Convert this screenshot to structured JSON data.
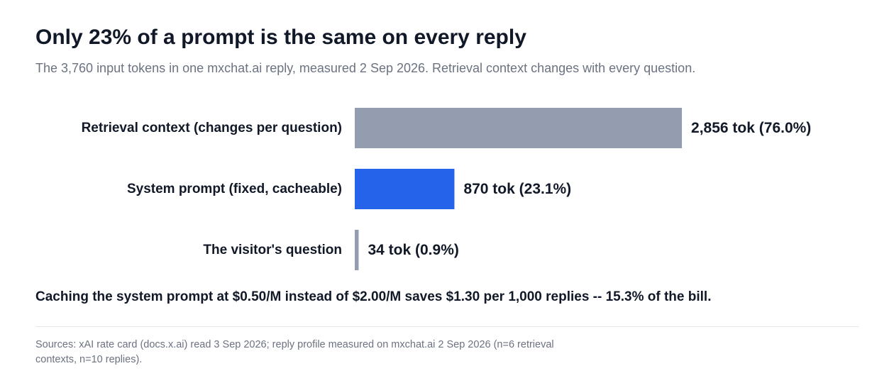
{
  "title": "Only 23% of a prompt is the same on every reply",
  "subtitle": "The 3,760 input tokens in one mxchat.ai reply, measured 2 Sep 2026. Retrieval context changes with every question.",
  "takeaway": "Caching the system prompt at $0.50/M instead of $2.00/M saves $1.30 per 1,000 replies -- 15.3% of the bill.",
  "source": "Sources: xAI rate card (docs.x.ai) read 3 Sep 2026; reply profile measured on mxchat.ai 2 Sep 2026 (n=6 retrieval contexts, n=10 replies).",
  "chart_data": {
    "type": "bar",
    "orientation": "horizontal",
    "categories": [
      "Retrieval context (changes per question)",
      "System prompt (fixed, cacheable)",
      "The visitor's question"
    ],
    "values": [
      2856,
      870,
      34
    ],
    "value_labels": [
      "2,856 tok (76.0%)",
      "870 tok (23.1%)",
      "34 tok (0.9%)"
    ],
    "colors": [
      "#949daf",
      "#2563eb",
      "#949daf"
    ],
    "xlim": [
      0,
      3760
    ],
    "grid": false,
    "legend": "none"
  }
}
